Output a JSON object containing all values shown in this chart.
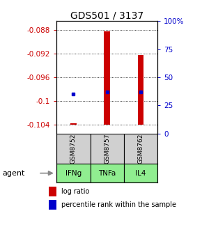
{
  "title": "GDS501 / 3137",
  "samples": [
    "GSM8752",
    "GSM8757",
    "GSM8762"
  ],
  "agents": [
    "IFNg",
    "TNFa",
    "IL4"
  ],
  "log_ratios": [
    -0.1038,
    -0.0882,
    -0.0922
  ],
  "percentile_ranks": [
    35,
    37,
    37
  ],
  "ylim": [
    -0.1055,
    -0.0865
  ],
  "yticks": [
    -0.088,
    -0.092,
    -0.096,
    -0.1,
    -0.104
  ],
  "right_yticks": [
    0,
    25,
    50,
    75,
    100
  ],
  "bar_color": "#CC0000",
  "dot_color": "#0000CC",
  "left_tick_color": "#CC0000",
  "right_tick_color": "#0000CC",
  "title_fontsize": 10,
  "tick_fontsize": 7.5,
  "agent_label": "agent",
  "legend_log": "log ratio",
  "legend_pct": "percentile rank within the sample",
  "bar_baseline": -0.104,
  "bar_width": 0.18,
  "gsm_row_color": "#d0d0d0",
  "agent_row_color": "#90EE90"
}
